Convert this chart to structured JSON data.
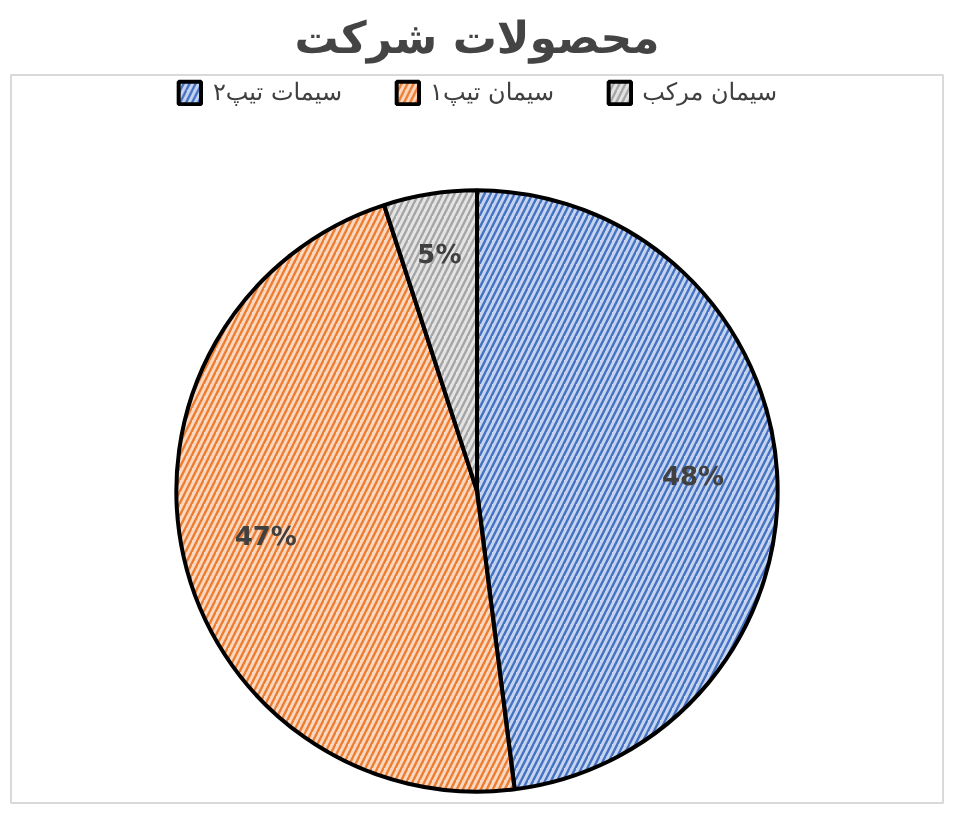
{
  "chart_data": {
    "type": "pie",
    "title": "محصولات شرکت",
    "categories": [
      "سیمات تیپ۲",
      "سیمان تیپ۱",
      "سیمان مرکب"
    ],
    "values": [
      48,
      47,
      5
    ],
    "colors": [
      "#4472c4",
      "#ed7d31",
      "#a5a5a5"
    ],
    "value_labels": [
      "48%",
      "47%",
      "5%"
    ],
    "legend": "top"
  }
}
